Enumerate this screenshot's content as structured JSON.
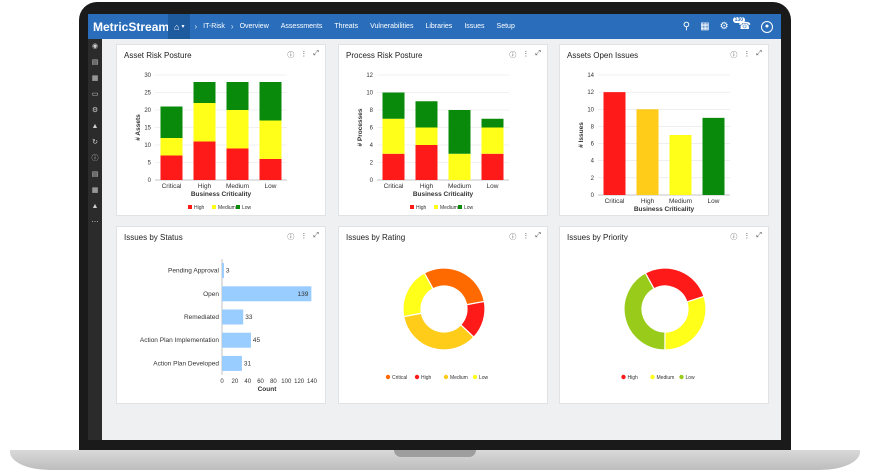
{
  "app": {
    "logo": "MetricStream",
    "nav": [
      "IT-Risk",
      "Overview",
      "Assessments",
      "Threats",
      "Vulnerabilities",
      "Libraries",
      "Issues",
      "Setup"
    ],
    "notification_count": "130"
  },
  "icons": {
    "home": "home-icon",
    "search": "search-icon",
    "calendar": "calendar-icon",
    "settings": "gear-icon",
    "phone": "phone-icon",
    "user": "user-icon",
    "help": "help-icon",
    "more": "more-icon",
    "expand": "expand-icon"
  },
  "colors": {
    "brand": "#2a6ebb",
    "high": "#ff1a1a",
    "medium": "#ffff1a",
    "low": "#0a8a0a",
    "critical": "#ff3300",
    "open_bar": "#99ccff"
  },
  "panels": {
    "asset_risk": "Asset Risk Posture",
    "process_risk": "Process Risk Posture",
    "assets_open": "Assets Open Issues",
    "issues_status": "Issues by Status",
    "issues_rating": "Issues by Rating",
    "issues_priority": "Issues by Priority"
  },
  "chart_data": [
    {
      "type": "bar",
      "id": "asset_risk",
      "title": "Asset Risk Posture",
      "xlabel": "Business Criticality",
      "ylabel": "# Assets",
      "categories": [
        "Critical",
        "High",
        "Medium",
        "Low"
      ],
      "series": [
        {
          "name": "High",
          "values": [
            7,
            11,
            9,
            6
          ]
        },
        {
          "name": "Medium",
          "values": [
            5,
            11,
            11,
            11
          ]
        },
        {
          "name": "Low",
          "values": [
            9,
            6,
            8,
            11
          ]
        }
      ],
      "ylim": [
        0,
        30
      ],
      "yticks": [
        0,
        5,
        10,
        15,
        20,
        25,
        30
      ],
      "stacked": true,
      "legend": "bottom"
    },
    {
      "type": "bar",
      "id": "process_risk",
      "title": "Process Risk Posture",
      "xlabel": "Business Criticality",
      "ylabel": "# Processes",
      "categories": [
        "Critical",
        "High",
        "Medium",
        "Low"
      ],
      "series": [
        {
          "name": "High",
          "values": [
            3,
            4,
            0,
            3
          ]
        },
        {
          "name": "Medium",
          "values": [
            4,
            2,
            3,
            3
          ]
        },
        {
          "name": "Low",
          "values": [
            3,
            3,
            5,
            1
          ]
        }
      ],
      "ylim": [
        0,
        12
      ],
      "yticks": [
        0,
        2,
        4,
        6,
        8,
        10,
        12
      ],
      "stacked": true,
      "legend": "bottom"
    },
    {
      "type": "bar",
      "id": "assets_open",
      "title": "Assets Open Issues",
      "xlabel": "Business Criticality",
      "ylabel": "# Issues",
      "categories": [
        "Critical",
        "High",
        "Medium",
        "Low"
      ],
      "values": [
        12,
        10,
        7,
        9
      ],
      "ylim": [
        0,
        14
      ],
      "yticks": [
        0,
        2,
        4,
        6,
        8,
        10,
        12,
        14
      ]
    },
    {
      "type": "bar",
      "id": "issues_status",
      "title": "Issues by Status",
      "orientation": "horizontal",
      "xlabel": "Count",
      "categories": [
        "Pending Approval",
        "Open",
        "Remediated",
        "Action Plan Implementation",
        "Action Plan Developed"
      ],
      "values": [
        3,
        139,
        33,
        45,
        31
      ],
      "xlim": [
        0,
        140
      ],
      "xticks": [
        0,
        20,
        40,
        60,
        80,
        100,
        120,
        140
      ]
    },
    {
      "type": "pie",
      "id": "issues_rating",
      "title": "Issues by Rating",
      "donut": true,
      "labels": [
        "Critical",
        "High",
        "Medium",
        "Low"
      ],
      "values": [
        30,
        15,
        35,
        20
      ],
      "legend": "bottom"
    },
    {
      "type": "pie",
      "id": "issues_priority",
      "title": "Issues by Priority",
      "donut": true,
      "labels": [
        "High",
        "Medium",
        "Low"
      ],
      "values": [
        28,
        30,
        42
      ],
      "legend": "bottom"
    }
  ]
}
